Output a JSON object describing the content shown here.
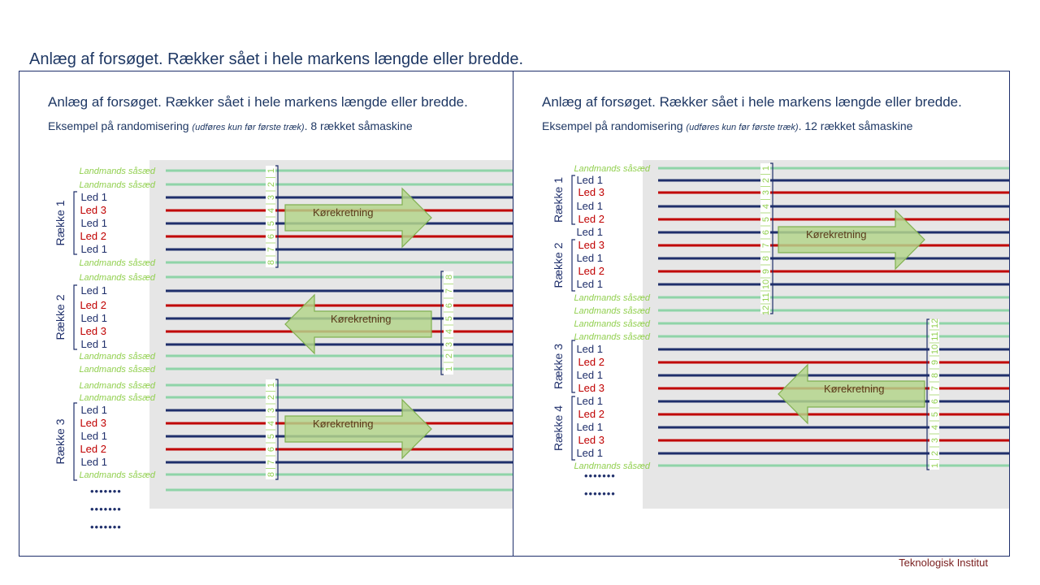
{
  "page": {
    "title": "Anlæg af forsøget. Rækker sået i hele markens længde eller bredde.",
    "footer": "Teknologisk Institut"
  },
  "colors": {
    "background_field": "#e6e6e6",
    "navy": "#1f2f6b",
    "red": "#c00000",
    "guard_green": "#8fd4a8",
    "guard_text": "#92d050",
    "number_green": "#92d050",
    "arrow_fill": "#b4d58c",
    "arrow_stroke": "#80b050",
    "title": "#1f3864",
    "footer": "#7a2020"
  },
  "left": {
    "title": "Anlæg af forsøget. Rækker sået i hele markens længde eller bredde.",
    "subtitle_main": "Eksempel på randomisering",
    "subtitle_italic": "(udføres kun før første træk)",
    "subtitle_end": ". 8 rækket såmaskine",
    "groups": [
      {
        "label": "Række 1",
        "arrow": "Kørekretning"
      },
      {
        "label": "Række 2",
        "arrow": "Kørekretning"
      },
      {
        "label": "Række 3",
        "arrow": "Kørekretning"
      }
    ],
    "rows": [
      {
        "label": "Landmands såsæd",
        "type": "guard",
        "num": "1"
      },
      {
        "label": "Landmands såsæd",
        "type": "guard",
        "num": "2"
      },
      {
        "label": "Led 1",
        "type": "navy",
        "num": "3"
      },
      {
        "label": "Led 3",
        "type": "red",
        "num": "4"
      },
      {
        "label": "Led 1",
        "type": "navy",
        "num": "5"
      },
      {
        "label": "Led 2",
        "type": "red",
        "num": "6"
      },
      {
        "label": "Led 1",
        "type": "navy",
        "num": "7"
      },
      {
        "label": "Landmands såsæd",
        "type": "guard",
        "num": "8"
      },
      {
        "label": "Landmands såsæd",
        "type": "guard",
        "num": "8"
      },
      {
        "label": "Led 1",
        "type": "navy",
        "num": "7"
      },
      {
        "label": "Led 2",
        "type": "red",
        "num": "6"
      },
      {
        "label": "Led 1",
        "type": "navy",
        "num": "5"
      },
      {
        "label": "Led 3",
        "type": "red",
        "num": "4"
      },
      {
        "label": "Led 1",
        "type": "navy",
        "num": "3"
      },
      {
        "label": "Landmands såsæd",
        "type": "guard",
        "num": "2"
      },
      {
        "label": "Landmands såsæd",
        "type": "guard",
        "num": "1"
      },
      {
        "label": "Landmands såsæd",
        "type": "guard",
        "num": "1"
      },
      {
        "label": "Landmands såsæd",
        "type": "guard",
        "num": "2"
      },
      {
        "label": "Led 1",
        "type": "navy",
        "num": "3"
      },
      {
        "label": "Led 3",
        "type": "red",
        "num": "4"
      },
      {
        "label": "Led 1",
        "type": "navy",
        "num": "5"
      },
      {
        "label": "Led 2",
        "type": "red",
        "num": "6"
      },
      {
        "label": "Led 1",
        "type": "navy",
        "num": "7"
      },
      {
        "label": "Landmands såsæd",
        "type": "guard",
        "num": "8"
      }
    ],
    "dots": [
      "•••••••",
      "•••••••",
      "•••••••"
    ]
  },
  "right": {
    "title": "Anlæg af forsøget. Rækker sået i hele markens længde eller bredde.",
    "subtitle_main": "Eksempel på randomisering",
    "subtitle_italic": "(udføres kun før første træk)",
    "subtitle_end": ". 12 rækket såmaskine",
    "groups": [
      {
        "label": "Række 1"
      },
      {
        "label": "Række 2"
      },
      {
        "label": "Række 3"
      },
      {
        "label": "Række 4"
      }
    ],
    "arrows": [
      "Kørekretning",
      "Kørekretning"
    ],
    "rows": [
      {
        "label": "Landmands såsæd",
        "type": "guard",
        "num": "1"
      },
      {
        "label": "Led 1",
        "type": "navy",
        "num": "2"
      },
      {
        "label": "Led 3",
        "type": "red",
        "num": "3"
      },
      {
        "label": "Led 1",
        "type": "navy",
        "num": "4"
      },
      {
        "label": "Led 2",
        "type": "red",
        "num": "5"
      },
      {
        "label": "Led 1",
        "type": "navy",
        "num": "6"
      },
      {
        "label": "Led 3",
        "type": "red",
        "num": "7"
      },
      {
        "label": "Led 1",
        "type": "navy",
        "num": "8"
      },
      {
        "label": "Led 2",
        "type": "red",
        "num": "9"
      },
      {
        "label": "Led 1",
        "type": "navy",
        "num": "10"
      },
      {
        "label": "Landmands såsæd",
        "type": "guard",
        "num": "11"
      },
      {
        "label": "Landmands såsæd",
        "type": "guard",
        "num": "12"
      },
      {
        "label": "Landmands såsæd",
        "type": "guard",
        "num": "12"
      },
      {
        "label": "Landmands såsæd",
        "type": "guard",
        "num": "11"
      },
      {
        "label": "Led 1",
        "type": "navy",
        "num": "10"
      },
      {
        "label": "Led 2",
        "type": "red",
        "num": "9"
      },
      {
        "label": "Led 1",
        "type": "navy",
        "num": "8"
      },
      {
        "label": "Led 3",
        "type": "red",
        "num": "7"
      },
      {
        "label": "Led 1",
        "type": "navy",
        "num": "6"
      },
      {
        "label": "Led 2",
        "type": "red",
        "num": "5"
      },
      {
        "label": "Led 1",
        "type": "navy",
        "num": "4"
      },
      {
        "label": "Led 3",
        "type": "red",
        "num": "3"
      },
      {
        "label": "Led 1",
        "type": "navy",
        "num": "2"
      },
      {
        "label": "Landmands såsæd",
        "type": "guard",
        "num": "1"
      }
    ],
    "dots": [
      "•••••••",
      "•••••••"
    ]
  }
}
